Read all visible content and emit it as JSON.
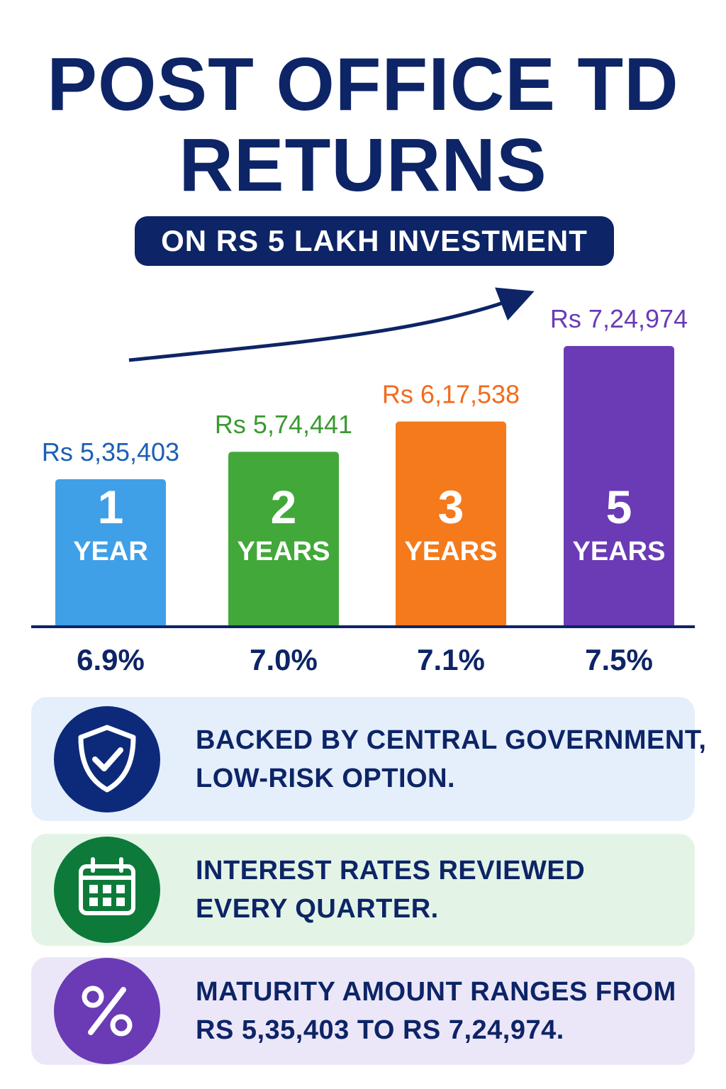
{
  "header": {
    "title_line1": "POST OFFICE TD",
    "title_line2": "RETURNS",
    "subtitle": "ON RS 5 LAKH INVESTMENT"
  },
  "chart_data": {
    "type": "bar",
    "categories": [
      {
        "number": "1",
        "unit": "YEAR"
      },
      {
        "number": "2",
        "unit": "YEARS"
      },
      {
        "number": "3",
        "unit": "YEARS"
      },
      {
        "number": "5",
        "unit": "YEARS"
      }
    ],
    "values": [
      535403,
      574441,
      617538,
      724974
    ],
    "value_labels": [
      "Rs 5,35,403",
      "Rs 5,74,441",
      "Rs 6,17,538",
      "Rs 7,24,974"
    ],
    "rate_labels": [
      "6.9%",
      "7.0%",
      "7.1%",
      "7.5%"
    ],
    "colors": [
      "#3fa0e8",
      "#43a83a",
      "#f47a1c",
      "#6a3bb5"
    ],
    "label_colors": [
      "#1b5fb8",
      "#3a9a30",
      "#f26b1d",
      "#6a3bb5"
    ],
    "axis_color": "#0d2466",
    "trend_arrow": true
  },
  "cards": [
    {
      "icon": "shield-check-icon",
      "bg": "#e4effb",
      "icon_bg": "#0d2a7a",
      "lines": [
        "BACKED BY CENTRAL GOVERNMENT,",
        "LOW-RISK OPTION."
      ]
    },
    {
      "icon": "calendar-icon",
      "bg": "#e3f4e7",
      "icon_bg": "#0d7a3a",
      "lines": [
        "INTEREST RATES REVIEWED",
        "EVERY QUARTER."
      ]
    },
    {
      "icon": "percent-icon",
      "bg": "#ece7f8",
      "icon_bg": "#6a3bb5",
      "lines": [
        "MATURITY AMOUNT RANGES FROM",
        "RS 5,35,403 TO RS 7,24,974."
      ]
    }
  ]
}
